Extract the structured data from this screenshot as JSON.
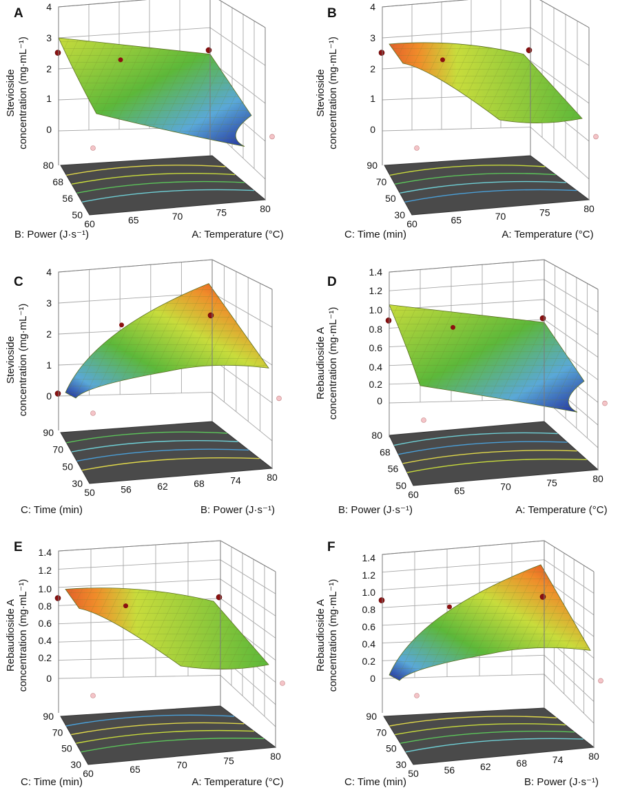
{
  "chart_data": [
    {
      "panel": "A",
      "type": "surface3d",
      "zlabel": [
        "Stevioside",
        "concentration (mg·mL⁻¹)"
      ],
      "zticks": [
        "0",
        "1",
        "2",
        "3",
        "4"
      ],
      "xlabel": "A: Temperature (°C)",
      "xticks": [
        "60",
        "65",
        "70",
        "75",
        "80"
      ],
      "ylabel": "B: Power (J·s⁻¹)",
      "yticks": [
        "50",
        "56",
        "68",
        "80"
      ],
      "zlim": [
        0,
        4
      ]
    },
    {
      "panel": "B",
      "type": "surface3d",
      "zlabel": [
        "Stevioside",
        "concentration (mg·mL⁻¹)"
      ],
      "zticks": [
        "0",
        "1",
        "2",
        "3",
        "4"
      ],
      "xlabel": "A: Temperature (°C)",
      "xticks": [
        "60",
        "65",
        "70",
        "75",
        "80"
      ],
      "ylabel": "C: Time (min)",
      "yticks": [
        "30",
        "50",
        "70",
        "90"
      ],
      "zlim": [
        0,
        4
      ]
    },
    {
      "panel": "C",
      "type": "surface3d",
      "zlabel": [
        "Stevioside",
        "concentration (mg·mL⁻¹)"
      ],
      "zticks": [
        "0",
        "1",
        "2",
        "3",
        "4"
      ],
      "xlabel": "B: Power (J·s⁻¹)",
      "xticks": [
        "50",
        "56",
        "62",
        "68",
        "74",
        "80"
      ],
      "ylabel": "C: Time (min)",
      "yticks": [
        "30",
        "50",
        "70",
        "90"
      ],
      "zlim": [
        0,
        4
      ]
    },
    {
      "panel": "D",
      "type": "surface3d",
      "zlabel": [
        "Rebaudioside A",
        "concentration (mg·mL⁻¹)"
      ],
      "zticks": [
        "0",
        "0.2",
        "0.4",
        "0.6",
        "0.8",
        "1.0",
        "1.2",
        "1.4"
      ],
      "xlabel": "A: Temperature (°C)",
      "xticks": [
        "60",
        "65",
        "70",
        "75",
        "80"
      ],
      "ylabel": "B: Power (J·s⁻¹)",
      "yticks": [
        "50",
        "56",
        "68",
        "80"
      ],
      "zlim": [
        0,
        1.4
      ]
    },
    {
      "panel": "E",
      "type": "surface3d",
      "zlabel": [
        "Rebaudioside A",
        "concentration (mg·mL⁻¹)"
      ],
      "zticks": [
        "0",
        "0.2",
        "0.4",
        "0.6",
        "0.8",
        "1.0",
        "1.2",
        "1.4"
      ],
      "xlabel": "A: Temperature (°C)",
      "xticks": [
        "60",
        "65",
        "70",
        "75",
        "80"
      ],
      "ylabel": "C: Time (min)",
      "yticks": [
        "30",
        "50",
        "70",
        "90"
      ],
      "zlim": [
        0,
        1.4
      ]
    },
    {
      "panel": "F",
      "type": "surface3d",
      "zlabel": [
        "Rebaudioside A",
        "concentration (mg·mL⁻¹)"
      ],
      "zticks": [
        "0",
        "0.2",
        "0.4",
        "0.6",
        "0.8",
        "1.0",
        "1.2",
        "1.4"
      ],
      "xlabel": "B: Power (J·s⁻¹)",
      "xticks": [
        "50",
        "56",
        "62",
        "68",
        "74",
        "80"
      ],
      "ylabel": "C: Time (min)",
      "yticks": [
        "30",
        "50",
        "70",
        "90"
      ],
      "zlim": [
        0,
        1.4
      ]
    }
  ],
  "colors": {
    "surface_high": "#d6231c",
    "surface_mid_high": "#f08c2a",
    "surface_mid": "#c8dc3c",
    "surface_green": "#5cb83a",
    "surface_low": "#5aa8d8",
    "surface_lowest": "#1e2a9a",
    "floor": "#4a4a4a",
    "point_dark": "#8b1010",
    "point_light": "#f4c4c8"
  }
}
